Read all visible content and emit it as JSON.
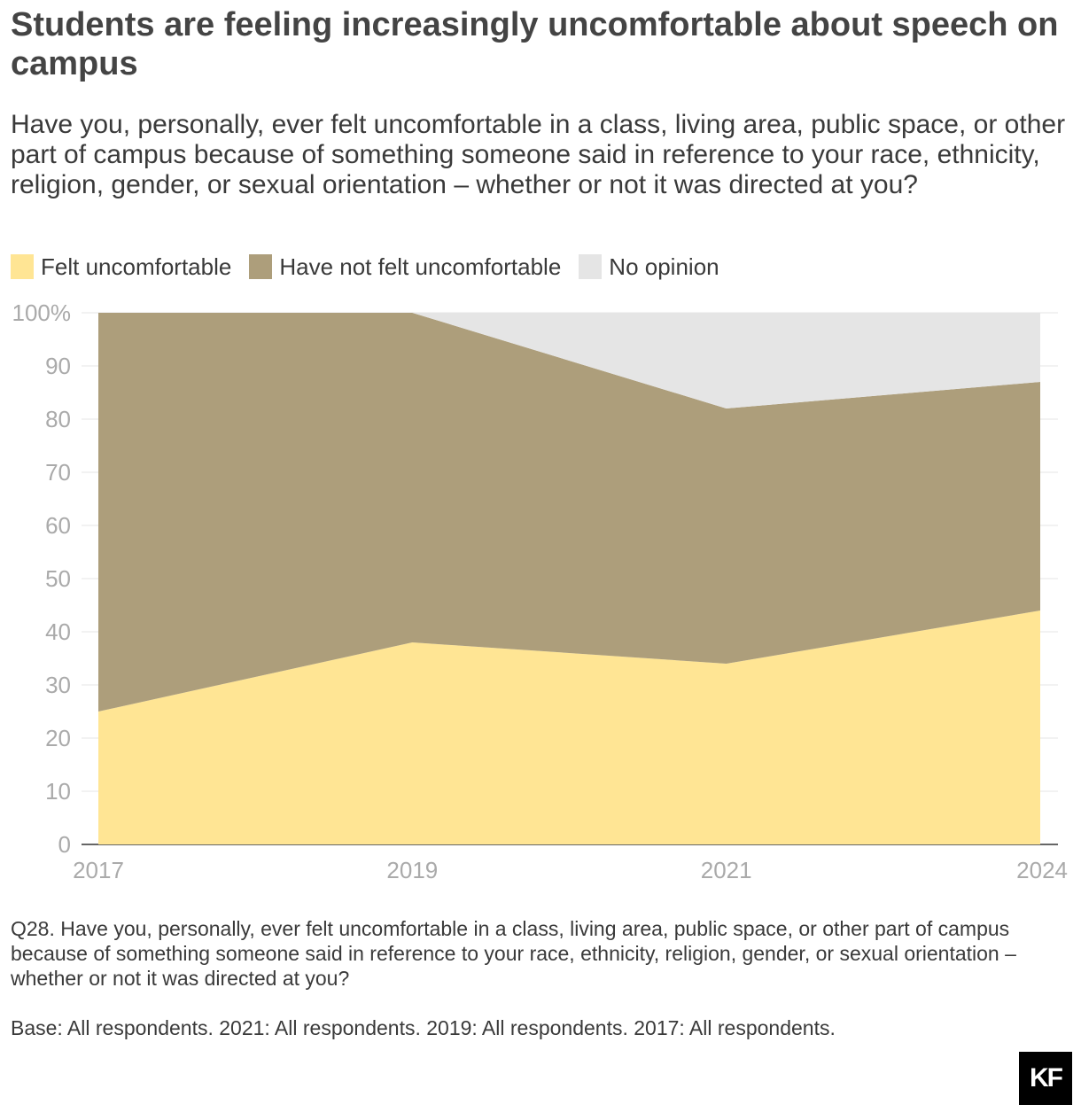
{
  "title": "Students are feeling increasingly uncomfortable about speech on campus",
  "subtitle": "Have you, personally, ever felt uncomfortable in a class, living area, public space, or other part of campus because of something someone said in reference to your race, ethnicity, religion, gender, or sexual orientation – whether or not it was directed at you?",
  "legend": [
    {
      "label": "Felt uncomfortable",
      "color": "#ffe594"
    },
    {
      "label": "Have not felt uncomfortable",
      "color": "#ad9e7b"
    },
    {
      "label": "No opinion",
      "color": "#e5e5e5"
    }
  ],
  "chart_data": {
    "type": "area",
    "stacked": true,
    "x": [
      "2017",
      "2019",
      "2021",
      "2024"
    ],
    "series": [
      {
        "name": "Felt uncomfortable",
        "values": [
          25,
          38,
          34,
          44
        ],
        "color": "#ffe594"
      },
      {
        "name": "Have not felt uncomfortable",
        "values": [
          75,
          62,
          48,
          43
        ],
        "color": "#ad9e7b"
      },
      {
        "name": "No opinion",
        "values": [
          0,
          0,
          18,
          13
        ],
        "color": "#e5e5e5"
      }
    ],
    "ylim": [
      0,
      100
    ],
    "yticks": [
      "0",
      "10",
      "20",
      "30",
      "40",
      "50",
      "60",
      "70",
      "80",
      "90",
      "100%"
    ],
    "grid": true
  },
  "footnote": "Q28. Have you, personally, ever felt uncomfortable in a class, living area, public space, or other part of campus because of something someone said in reference to your race, ethnicity, religion, gender, or sexual orientation – whether or not it was directed at you?",
  "base": "Base: All respondents. 2021: All respondents. 2019: All respondents. 2017: All respondents.",
  "logo_text": "KF"
}
